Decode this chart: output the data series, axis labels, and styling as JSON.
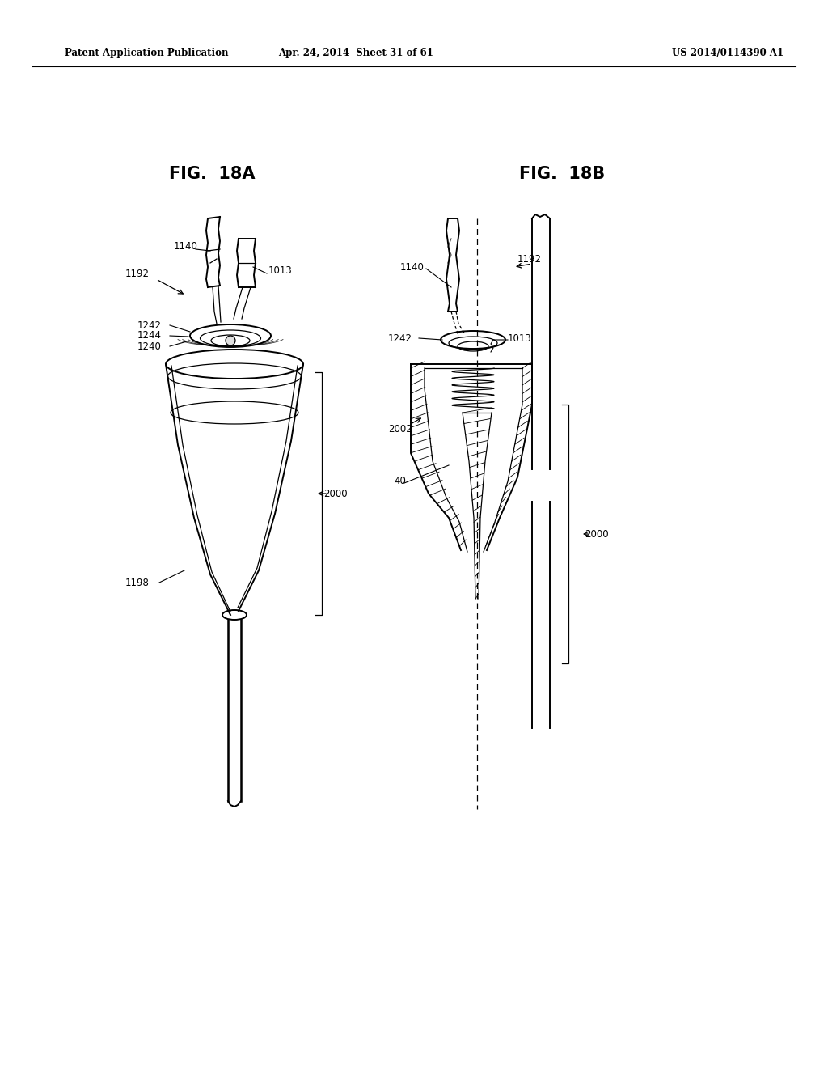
{
  "header_left": "Patent Application Publication",
  "header_mid": "Apr. 24, 2014  Sheet 31 of 61",
  "header_right": "US 2014/0114390 A1",
  "fig_left_title": "FIG.  18A",
  "fig_right_title": "FIG.  18B",
  "bg_color": "#ffffff",
  "line_color": "#000000"
}
